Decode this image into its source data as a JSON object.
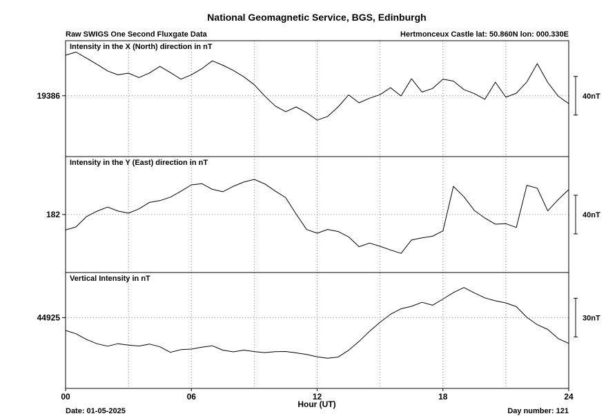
{
  "header": {
    "title": "National Geomagnetic Service, BGS, Edinburgh",
    "subtitle_left": "Raw SWIGS One Second Fluxgate Data",
    "subtitle_right": "Hertmonceux Castle  lat: 50.860N lon: 000.330E"
  },
  "footer": {
    "date": "Date: 01-05-2025",
    "day_number": "Day number:  121"
  },
  "chart_data": [
    {
      "type": "line",
      "title": "Intensity in the X (North) direction in nT",
      "xlabel": "Hour (UT)",
      "ylabel": "",
      "x_ticks": [
        "00",
        "06",
        "12",
        "18",
        "24"
      ],
      "xlim": [
        0,
        24
      ],
      "y_tick": 19386,
      "scale_bar": "40nT",
      "scale_bar_nT": 40,
      "ylim": [
        19323,
        19443
      ],
      "grid": true,
      "x": [
        0,
        0.5,
        1,
        1.5,
        2,
        2.5,
        3,
        3.5,
        4,
        4.5,
        5,
        5.5,
        6,
        6.5,
        7,
        7.5,
        8,
        8.5,
        9,
        9.5,
        10,
        10.5,
        11,
        11.5,
        12,
        12.5,
        13,
        13.5,
        14,
        14.5,
        15,
        15.5,
        16,
        16.5,
        17,
        17.5,
        18,
        18.5,
        19,
        19.5,
        20,
        20.5,
        21,
        21.5,
        22,
        22.5,
        23,
        23.5,
        24
      ],
      "y": [
        19428,
        19432,
        19425,
        19419,
        19412,
        19408,
        19410,
        19405,
        19409,
        19416,
        19410,
        19403,
        19407,
        19414,
        19422,
        19418,
        19413,
        19406,
        19398,
        19386,
        19376,
        19370,
        19375,
        19368,
        19360,
        19364,
        19374,
        19386,
        19378,
        19383,
        19388,
        19395,
        19386,
        19404,
        19390,
        19394,
        19404,
        19402,
        19392,
        19388,
        19382,
        19400,
        19384,
        19388,
        19400,
        19420,
        19400,
        19386,
        19378
      ]
    },
    {
      "type": "line",
      "title": "Intensity in the Y (East) direction in nT",
      "xlabel": "Hour (UT)",
      "ylabel": "",
      "x_ticks": [
        "00",
        "06",
        "12",
        "18",
        "24"
      ],
      "xlim": [
        0,
        24
      ],
      "y_tick": 182,
      "scale_bar": "40nT",
      "scale_bar_nT": 40,
      "ylim": [
        122,
        242
      ],
      "grid": true,
      "x": [
        0,
        0.5,
        1,
        1.5,
        2,
        2.5,
        3,
        3.5,
        4,
        4.5,
        5,
        5.5,
        6,
        6.5,
        7,
        7.5,
        8,
        8.5,
        9,
        9.5,
        10,
        10.5,
        11,
        11.5,
        12,
        12.5,
        13,
        13.5,
        14,
        14.5,
        15,
        15.5,
        16,
        16.5,
        17,
        17.5,
        18,
        18.5,
        19,
        19.5,
        20,
        20.5,
        21,
        21.5,
        22,
        22.5,
        23,
        23.5,
        24
      ],
      "y": [
        166,
        170,
        180,
        186,
        190,
        186,
        184,
        188,
        194,
        196,
        200,
        206,
        212,
        214,
        208,
        206,
        212,
        216,
        219,
        214,
        207,
        200,
        183,
        166,
        162,
        166,
        164,
        158,
        148,
        152,
        150,
        146,
        142,
        156,
        158,
        160,
        166,
        212,
        200,
        186,
        178,
        172,
        172,
        168,
        212,
        210,
        186,
        198,
        208
      ]
    },
    {
      "type": "line",
      "title": "Vertical Intensity in nT",
      "xlabel": "Hour (UT)",
      "ylabel": "",
      "x_ticks": [
        "00",
        "06",
        "12",
        "18",
        "24"
      ],
      "xlim": [
        0,
        24
      ],
      "y_tick": 44925,
      "scale_bar": "30nT",
      "scale_bar_nT": 30,
      "ylim": [
        44870,
        44960
      ],
      "grid": true,
      "x": [
        0,
        0.5,
        1,
        1.5,
        2,
        2.5,
        3,
        3.5,
        4,
        4.5,
        5,
        5.5,
        6,
        6.5,
        7,
        7.5,
        8,
        8.5,
        9,
        9.5,
        10,
        10.5,
        11,
        11.5,
        12,
        12.5,
        13,
        13.5,
        14,
        14.5,
        15,
        15.5,
        16,
        16.5,
        17,
        17.5,
        18,
        18.5,
        19,
        19.5,
        20,
        20.5,
        21,
        21.5,
        22,
        22.5,
        23,
        23.5,
        24
      ],
      "y": [
        44915,
        44913,
        44908,
        44905,
        44903,
        44905,
        44904,
        44903,
        44904,
        44902,
        44898,
        44900,
        44900,
        44902,
        44903,
        44900,
        44899,
        44900,
        44899,
        44898,
        44899,
        44899,
        44898,
        44896,
        44894,
        44893,
        44894,
        44899,
        44906,
        44914,
        44922,
        44928,
        44932,
        44934,
        44937,
        44935,
        44940,
        44945,
        44948,
        44944,
        44940,
        44938,
        44936,
        44933,
        44925,
        44920,
        44916,
        44909,
        44905
      ]
    }
  ]
}
